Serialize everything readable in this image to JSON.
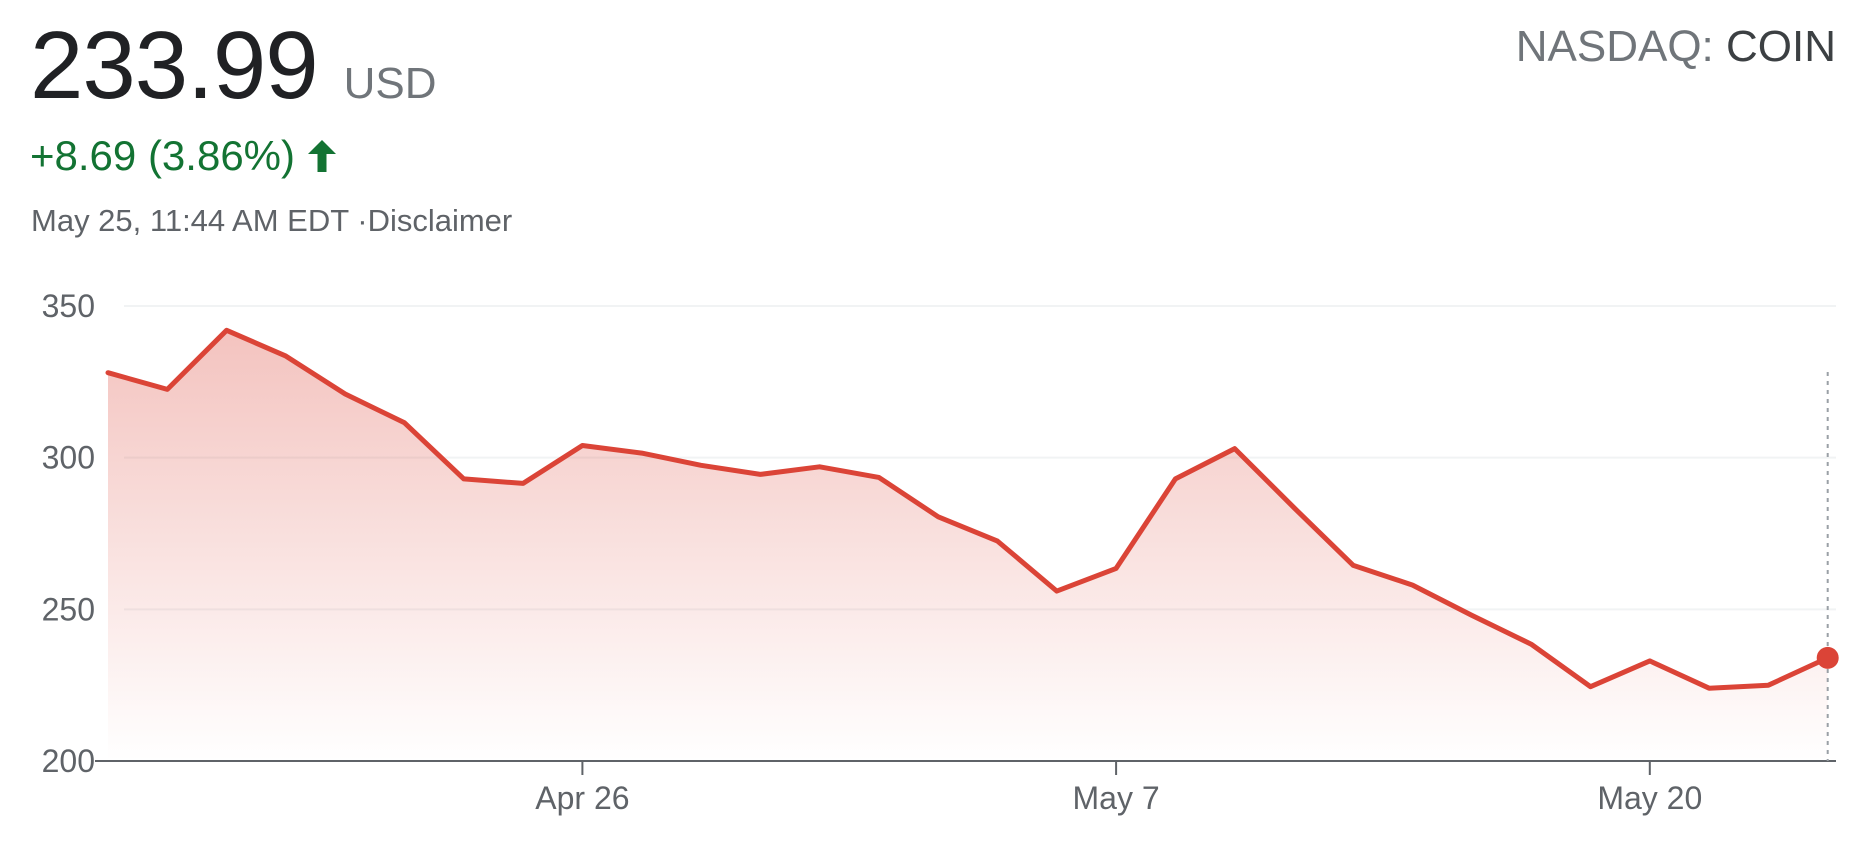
{
  "quote": {
    "price": "233.99",
    "currency": "USD",
    "exchange": "NASDAQ:",
    "symbol": "COIN",
    "change": "+8.69 (3.86%)",
    "timestamp": "May 25, 11:44 AM EDT ·",
    "disclaimer": "Disclaimer"
  },
  "colors": {
    "line": "#db4437",
    "positive": "#137333"
  },
  "icons": {
    "change_direction": "arrow-up-icon"
  },
  "chart_data": {
    "type": "area",
    "title": "",
    "xlabel": "",
    "ylabel": "",
    "ylim": [
      200,
      350
    ],
    "yticks": [
      "200",
      "250",
      "300",
      "350"
    ],
    "xticks": [
      "Apr 26",
      "May 7",
      "May 20"
    ],
    "xtick_index": [
      8,
      17,
      26
    ],
    "grid": true,
    "series": [
      {
        "values": [
          328,
          322.5,
          342,
          333.5,
          321,
          311.5,
          293,
          291.5,
          304,
          301.5,
          297.5,
          294.5,
          297,
          293.5,
          280.5,
          272.5,
          256,
          263.5,
          293,
          303,
          283.5,
          264.5,
          258,
          248,
          238.5,
          224.5,
          233,
          224,
          225,
          234
        ]
      }
    ]
  }
}
